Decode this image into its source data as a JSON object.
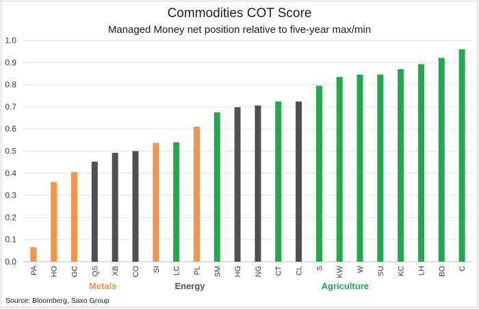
{
  "chart_data": {
    "type": "bar",
    "title": "Commodities COT Score",
    "subtitle": "Managed Money net position relative to five-year max/min",
    "source": "Source: Bloomberg, Saxo Group",
    "ylim": [
      0,
      1.0
    ],
    "yticks": [
      "0.0",
      "0.1",
      "0.2",
      "0.3",
      "0.4",
      "0.5",
      "0.6",
      "0.7",
      "0.8",
      "0.9",
      "1.0"
    ],
    "grid": true,
    "categories": [
      "PA",
      "HO",
      "GC",
      "QS",
      "XB",
      "CO",
      "SI",
      "LC",
      "PL",
      "SM",
      "HG",
      "NG",
      "CT",
      "CL",
      "S",
      "KW",
      "W",
      "SU",
      "KC",
      "LH",
      "BO",
      "C"
    ],
    "values": [
      0.065,
      0.36,
      0.405,
      0.452,
      0.492,
      0.5,
      0.537,
      0.54,
      0.61,
      0.675,
      0.698,
      0.706,
      0.724,
      0.724,
      0.795,
      0.835,
      0.845,
      0.846,
      0.87,
      0.893,
      0.921,
      0.96
    ],
    "groups": [
      "Metals",
      "Metals",
      "Metals",
      "Energy",
      "Energy",
      "Energy",
      "Metals",
      "Agriculture",
      "Metals",
      "Agriculture",
      "Energy",
      "Energy",
      "Agriculture",
      "Energy",
      "Agriculture",
      "Agriculture",
      "Agriculture",
      "Agriculture",
      "Agriculture",
      "Agriculture",
      "Agriculture",
      "Agriculture"
    ],
    "group_labels": [
      {
        "name": "Metals",
        "color": "#f4954a"
      },
      {
        "name": "Energy",
        "color": "#505050"
      },
      {
        "name": "Agriculture",
        "color": "#1faa4b"
      }
    ]
  }
}
